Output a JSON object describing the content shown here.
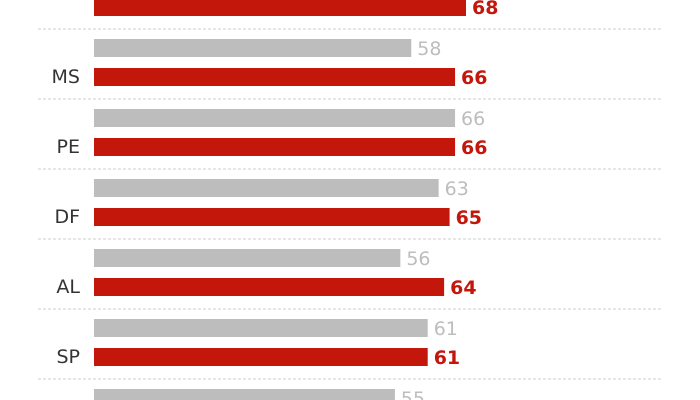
{
  "chart_data": {
    "type": "bar",
    "orientation": "horizontal",
    "categories": [
      "",
      "MS",
      "PE",
      "DF",
      "AL",
      "SP",
      ""
    ],
    "series": [
      {
        "values": [
          null,
          58,
          66,
          63,
          56,
          61,
          55
        ],
        "color": "#bdbdbd"
      },
      {
        "values": [
          68,
          66,
          66,
          65,
          64,
          61,
          null
        ],
        "color": "#c4170c"
      }
    ],
    "xlim": [
      0,
      68
    ],
    "grid": false,
    "legend": "none"
  }
}
